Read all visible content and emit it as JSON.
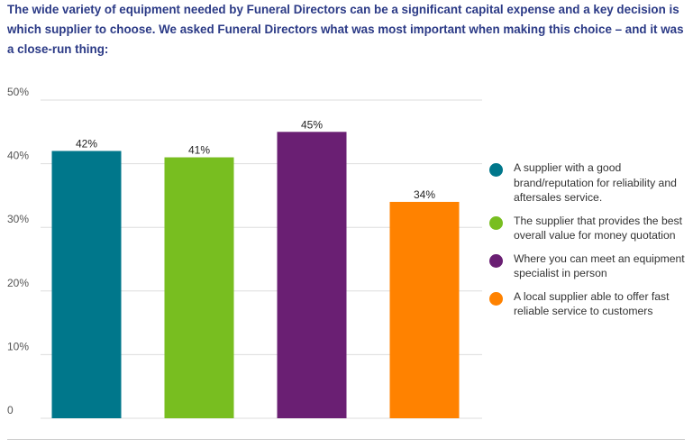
{
  "intro_text": "The wide variety of equipment needed by Funeral Directors can be a significant capital expense and a key decision is which supplier to choose. We asked Funeral Directors what was most important when making this choice – and it was a close-run thing:",
  "chart_data": {
    "type": "bar",
    "title": "",
    "xlabel": "",
    "ylabel": "",
    "ylim": [
      0,
      50
    ],
    "y_ticks": [
      0,
      10,
      20,
      30,
      40,
      50
    ],
    "y_tick_labels": [
      "0",
      "10%",
      "20%",
      "30%",
      "40%",
      "50%"
    ],
    "grid": true,
    "legend_position": "right",
    "categories": [
      "A supplier with a good brand/reputation for reliability and aftersales service.",
      "The supplier that provides the best overall value for money quotation",
      "Where you can meet an equipment specialist in person",
      "A local supplier able to offer fast reliable service to customers"
    ],
    "values": [
      42,
      41,
      45,
      34
    ],
    "data_labels": [
      "42%",
      "41%",
      "45%",
      "34%"
    ],
    "colors": [
      "#00778b",
      "#78be20",
      "#6a1f73",
      "#ff8200"
    ]
  },
  "colors": {
    "title_text": "#2b3a86",
    "gridline": "#dddddd"
  }
}
